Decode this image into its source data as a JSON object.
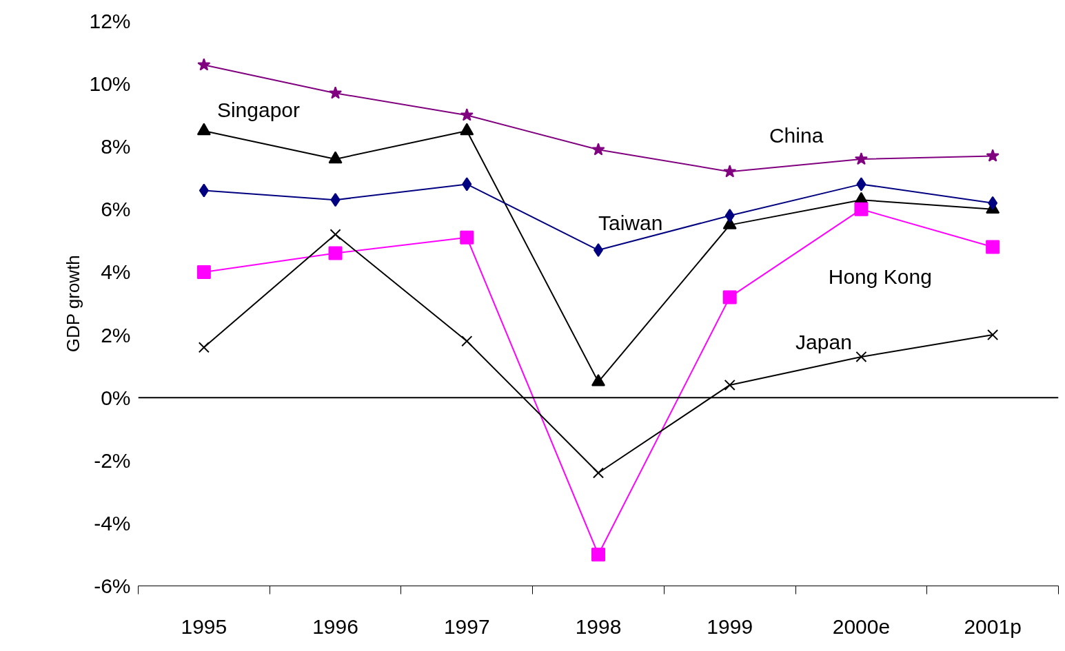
{
  "chart_data": {
    "type": "line",
    "ylabel": "GDP growth",
    "categories": [
      "1995",
      "1996",
      "1997",
      "1998",
      "1999",
      "2000e",
      "2001p"
    ],
    "series": [
      {
        "name": "China",
        "color": "#800080",
        "marker": "star",
        "values": [
          10.6,
          9.7,
          9.0,
          7.9,
          7.2,
          7.6,
          7.7
        ]
      },
      {
        "name": "Singapor",
        "color": "#000000",
        "marker": "triangle",
        "values": [
          8.5,
          7.6,
          8.5,
          0.5,
          5.5,
          6.3,
          6.0
        ]
      },
      {
        "name": "Taiwan",
        "color": "#000080",
        "marker": "diamond",
        "values": [
          6.6,
          6.3,
          6.8,
          4.7,
          5.8,
          6.8,
          6.2
        ]
      },
      {
        "name": "Hong Kong",
        "color": "#ff00ff",
        "marker": "square",
        "values": [
          4.0,
          4.6,
          5.1,
          -5.0,
          3.2,
          6.0,
          4.8
        ]
      },
      {
        "name": "Japan",
        "color": "#000000",
        "marker": "cross",
        "values": [
          1.6,
          5.2,
          1.8,
          -2.4,
          0.4,
          1.3,
          2.0
        ]
      }
    ],
    "ylim": [
      -6,
      12
    ],
    "yticks": [
      {
        "value": -6,
        "label": "-6%"
      },
      {
        "value": -4,
        "label": "-4%"
      },
      {
        "value": -2,
        "label": "-2%"
      },
      {
        "value": 0,
        "label": "0%"
      },
      {
        "value": 2,
        "label": "2%"
      },
      {
        "value": 4,
        "label": "4%"
      },
      {
        "value": 6,
        "label": "6%"
      },
      {
        "value": 8,
        "label": "8%"
      },
      {
        "value": 10,
        "label": "10%"
      },
      {
        "value": 12,
        "label": "12%"
      }
    ],
    "ref_lines": [
      {
        "axis": "y",
        "value": 0,
        "color": "#000000"
      }
    ],
    "grid": false,
    "line_style": "solid"
  }
}
